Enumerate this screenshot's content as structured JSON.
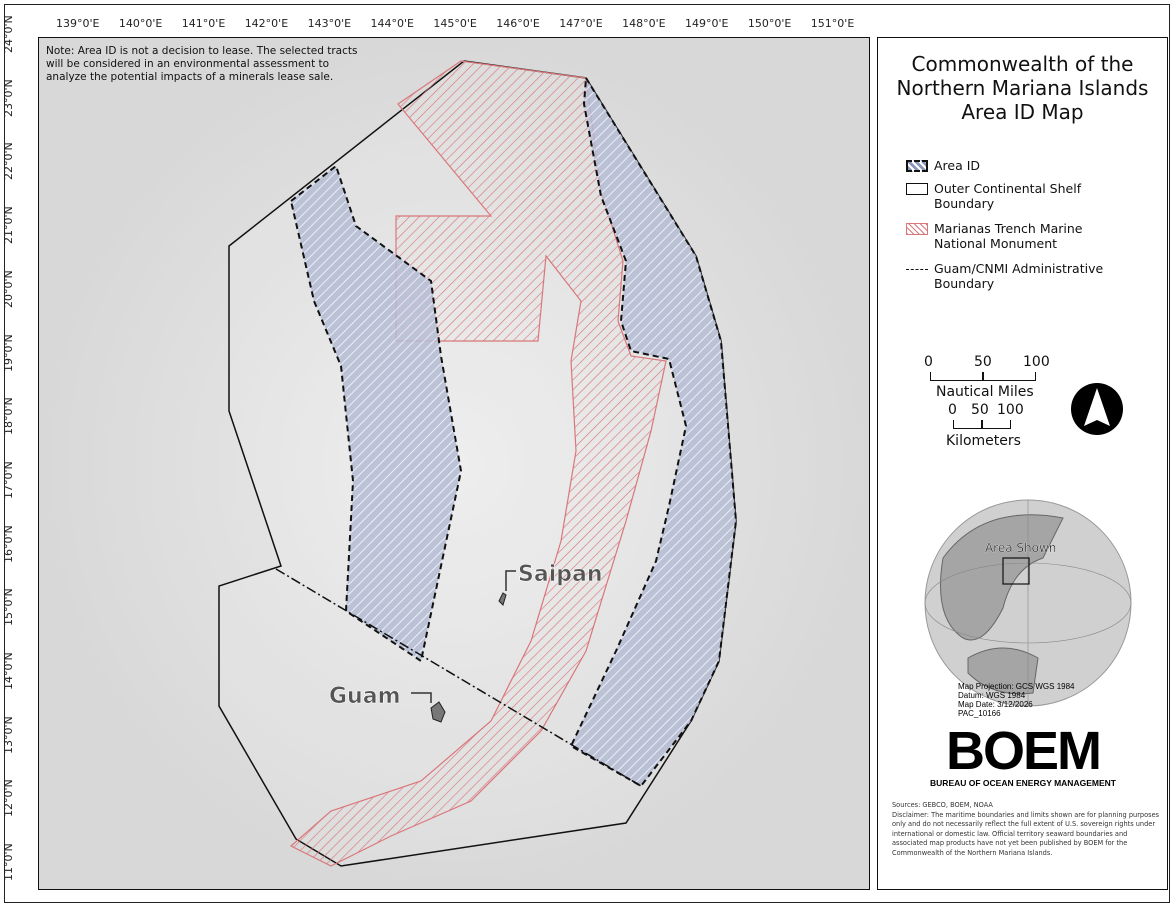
{
  "axes": {
    "lon_ticks": [
      "139°0'E",
      "140°0'E",
      "141°0'E",
      "142°0'E",
      "143°0'E",
      "144°0'E",
      "145°0'E",
      "146°0'E",
      "147°0'E",
      "148°0'E",
      "149°0'E",
      "150°0'E",
      "151°0'E"
    ],
    "lat_ticks": [
      "24°0'N",
      "23°0'N",
      "22°0'N",
      "21°0'N",
      "20°0'N",
      "19°0'N",
      "18°0'N",
      "17°0'N",
      "16°0'N",
      "15°0'N",
      "14°0'N",
      "13°0'N",
      "12°0'N",
      "11°0'N"
    ]
  },
  "note": "Note: Area ID is not a decision to lease. The selected tracts will be considered in an environmental assessment to analyze the potential impacts of a minerals lease sale.",
  "places": {
    "saipan": "Saipan",
    "guam": "Guam"
  },
  "title": [
    "Commonwealth of the",
    "Northern Mariana Islands",
    "Area ID Map"
  ],
  "legend": [
    {
      "label": "Area ID"
    },
    {
      "label": "Outer Continental Shelf Boundary"
    },
    {
      "label": "Marianas Trench Marine National Monument"
    },
    {
      "label": "Guam/CNMI Administrative Boundary"
    }
  ],
  "scale": {
    "nm_ticks": [
      "0",
      "50",
      "100"
    ],
    "nm_unit": "Nautical Miles",
    "km_ticks": [
      "0",
      "50",
      "100"
    ],
    "km_unit": "Kilometers"
  },
  "inset": {
    "label": "Area Shown"
  },
  "info": [
    "Map Projection: GCS WGS 1984",
    "Datum: WGS 1984",
    "Map Date: 3/12/2026",
    "PAC_10166"
  ],
  "logo": {
    "text": "BOEM",
    "subtitle": "BUREAU OF OCEAN ENERGY MANAGEMENT"
  },
  "sources": "Sources: GEBCO, BOEM, NOAA",
  "disclaimer": "Disclaimer: The maritime boundaries and limits shown are for planning purposes only and do not necessarily reflect the full extent of U.S. sovereign rights under international or domestic law. Official territory seaward boundaries and associated map products have not yet been published by BOEM for the Commonwealth of the Northern Mariana Islands.",
  "colors": {
    "area_id": "#8a96b8",
    "monument": "#d9777a",
    "background": "#e4e4e4"
  }
}
